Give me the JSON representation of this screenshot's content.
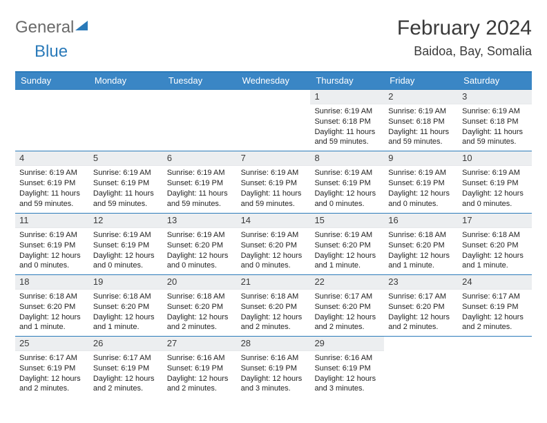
{
  "brand": {
    "general": "General",
    "blue": "Blue"
  },
  "title": "February 2024",
  "location": "Baidoa, Bay, Somalia",
  "colors": {
    "header_bg": "#3a86c5",
    "border": "#2a7ab9",
    "daynum_bg": "#eceef0",
    "text": "#3a3a3a"
  },
  "day_headers": [
    "Sunday",
    "Monday",
    "Tuesday",
    "Wednesday",
    "Thursday",
    "Friday",
    "Saturday"
  ],
  "weeks": [
    [
      null,
      null,
      null,
      null,
      {
        "n": "1",
        "sr": "6:19 AM",
        "ss": "6:18 PM",
        "dl": "11 hours and 59 minutes."
      },
      {
        "n": "2",
        "sr": "6:19 AM",
        "ss": "6:18 PM",
        "dl": "11 hours and 59 minutes."
      },
      {
        "n": "3",
        "sr": "6:19 AM",
        "ss": "6:18 PM",
        "dl": "11 hours and 59 minutes."
      }
    ],
    [
      {
        "n": "4",
        "sr": "6:19 AM",
        "ss": "6:19 PM",
        "dl": "11 hours and 59 minutes."
      },
      {
        "n": "5",
        "sr": "6:19 AM",
        "ss": "6:19 PM",
        "dl": "11 hours and 59 minutes."
      },
      {
        "n": "6",
        "sr": "6:19 AM",
        "ss": "6:19 PM",
        "dl": "11 hours and 59 minutes."
      },
      {
        "n": "7",
        "sr": "6:19 AM",
        "ss": "6:19 PM",
        "dl": "11 hours and 59 minutes."
      },
      {
        "n": "8",
        "sr": "6:19 AM",
        "ss": "6:19 PM",
        "dl": "12 hours and 0 minutes."
      },
      {
        "n": "9",
        "sr": "6:19 AM",
        "ss": "6:19 PM",
        "dl": "12 hours and 0 minutes."
      },
      {
        "n": "10",
        "sr": "6:19 AM",
        "ss": "6:19 PM",
        "dl": "12 hours and 0 minutes."
      }
    ],
    [
      {
        "n": "11",
        "sr": "6:19 AM",
        "ss": "6:19 PM",
        "dl": "12 hours and 0 minutes."
      },
      {
        "n": "12",
        "sr": "6:19 AM",
        "ss": "6:19 PM",
        "dl": "12 hours and 0 minutes."
      },
      {
        "n": "13",
        "sr": "6:19 AM",
        "ss": "6:20 PM",
        "dl": "12 hours and 0 minutes."
      },
      {
        "n": "14",
        "sr": "6:19 AM",
        "ss": "6:20 PM",
        "dl": "12 hours and 0 minutes."
      },
      {
        "n": "15",
        "sr": "6:19 AM",
        "ss": "6:20 PM",
        "dl": "12 hours and 1 minute."
      },
      {
        "n": "16",
        "sr": "6:18 AM",
        "ss": "6:20 PM",
        "dl": "12 hours and 1 minute."
      },
      {
        "n": "17",
        "sr": "6:18 AM",
        "ss": "6:20 PM",
        "dl": "12 hours and 1 minute."
      }
    ],
    [
      {
        "n": "18",
        "sr": "6:18 AM",
        "ss": "6:20 PM",
        "dl": "12 hours and 1 minute."
      },
      {
        "n": "19",
        "sr": "6:18 AM",
        "ss": "6:20 PM",
        "dl": "12 hours and 1 minute."
      },
      {
        "n": "20",
        "sr": "6:18 AM",
        "ss": "6:20 PM",
        "dl": "12 hours and 2 minutes."
      },
      {
        "n": "21",
        "sr": "6:18 AM",
        "ss": "6:20 PM",
        "dl": "12 hours and 2 minutes."
      },
      {
        "n": "22",
        "sr": "6:17 AM",
        "ss": "6:20 PM",
        "dl": "12 hours and 2 minutes."
      },
      {
        "n": "23",
        "sr": "6:17 AM",
        "ss": "6:20 PM",
        "dl": "12 hours and 2 minutes."
      },
      {
        "n": "24",
        "sr": "6:17 AM",
        "ss": "6:19 PM",
        "dl": "12 hours and 2 minutes."
      }
    ],
    [
      {
        "n": "25",
        "sr": "6:17 AM",
        "ss": "6:19 PM",
        "dl": "12 hours and 2 minutes."
      },
      {
        "n": "26",
        "sr": "6:17 AM",
        "ss": "6:19 PM",
        "dl": "12 hours and 2 minutes."
      },
      {
        "n": "27",
        "sr": "6:16 AM",
        "ss": "6:19 PM",
        "dl": "12 hours and 2 minutes."
      },
      {
        "n": "28",
        "sr": "6:16 AM",
        "ss": "6:19 PM",
        "dl": "12 hours and 3 minutes."
      },
      {
        "n": "29",
        "sr": "6:16 AM",
        "ss": "6:19 PM",
        "dl": "12 hours and 3 minutes."
      },
      null,
      null
    ]
  ],
  "labels": {
    "sunrise": "Sunrise:",
    "sunset": "Sunset:",
    "daylight": "Daylight:"
  }
}
